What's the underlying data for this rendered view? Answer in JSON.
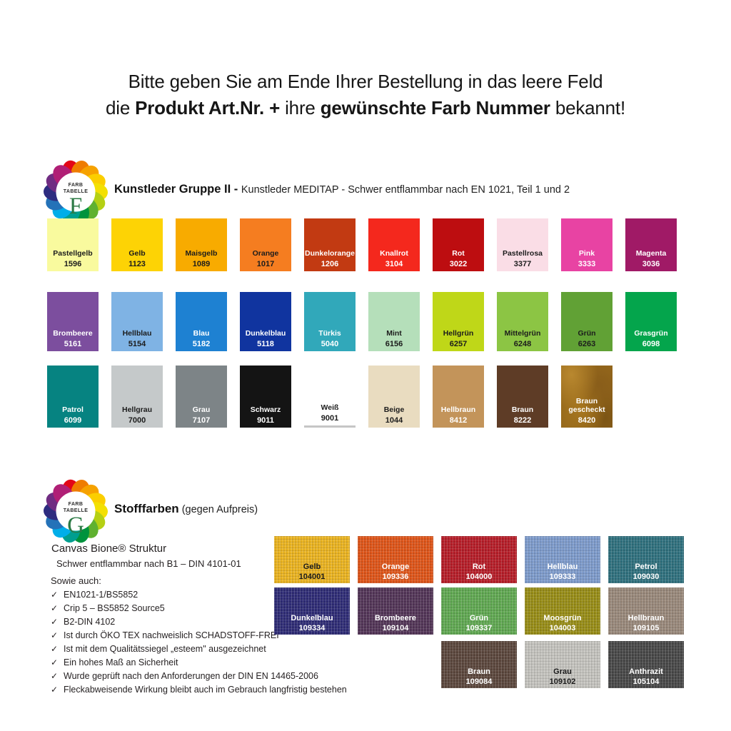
{
  "header": {
    "line1": "Bitte geben Sie am Ende Ihrer Bestellung in das leere Feld",
    "line2": {
      "pre": "die ",
      "bold1": "Produkt Art.Nr. +",
      "mid": " ihre ",
      "bold2": "gewünschte Farb Nummer",
      "post": " bekannt!"
    }
  },
  "logo": {
    "petal_colors": [
      "#e30617",
      "#ef7c00",
      "#f6a200",
      "#fbce00",
      "#f3e003",
      "#b5d014",
      "#5fb130",
      "#00933d",
      "#009e8f",
      "#00aee9",
      "#2472b8",
      "#2e2c80",
      "#702c82",
      "#b01f76"
    ],
    "circle": "#ffffff",
    "text_top": "FARB",
    "text_mid": "TABELLE",
    "letter_color": "#2c7a45"
  },
  "section1": {
    "logo_letter": "F",
    "title_bold": "Kunstleder Gruppe II - ",
    "title_rest": "Kunstleder MEDITAP - Schwer entflammbar nach EN 1021, Teil 1 und 2",
    "rows": [
      [
        {
          "name": "Pastellgelb",
          "code": "1596",
          "bg": "#f9fa9e",
          "fg": "#1c1c1c"
        },
        {
          "name": "Gelb",
          "code": "1123",
          "bg": "#fdd305",
          "fg": "#1c1c1c"
        },
        {
          "name": "Maisgelb",
          "code": "1089",
          "bg": "#f8ab00",
          "fg": "#1c1c1c"
        },
        {
          "name": "Orange",
          "code": "1017",
          "bg": "#f57d20",
          "fg": "#1c1c1c"
        },
        {
          "name": "Dunkelorange",
          "code": "1206",
          "bg": "#c23a12",
          "fg": "#ffffff"
        },
        {
          "name": "Knallrot",
          "code": "3104",
          "bg": "#f4281d",
          "fg": "#ffffff"
        },
        {
          "name": "Rot",
          "code": "3022",
          "bg": "#bd0d10",
          "fg": "#ffffff"
        },
        {
          "name": "Pastellrosa",
          "code": "3377",
          "bg": "#fadde6",
          "fg": "#1c1c1c"
        },
        {
          "name": "Pink",
          "code": "3333",
          "bg": "#e843a3",
          "fg": "#ffffff"
        },
        {
          "name": "Magenta",
          "code": "3036",
          "bg": "#a01a66",
          "fg": "#ffffff"
        }
      ],
      [
        {
          "name": "Brombeere",
          "code": "5161",
          "bg": "#7c4e9e",
          "fg": "#ffffff"
        },
        {
          "name": "Hellblau",
          "code": "5154",
          "bg": "#7fb3e4",
          "fg": "#1c1c1c"
        },
        {
          "name": "Blau",
          "code": "5182",
          "bg": "#1e81d2",
          "fg": "#ffffff"
        },
        {
          "name": "Dunkelblau",
          "code": "5118",
          "bg": "#10349f",
          "fg": "#ffffff"
        },
        {
          "name": "Türkis",
          "code": "5040",
          "bg": "#31a8ba",
          "fg": "#ffffff"
        },
        {
          "name": "Mint",
          "code": "6156",
          "bg": "#b5dfba",
          "fg": "#1c1c1c"
        },
        {
          "name": "Hellgrün",
          "code": "6257",
          "bg": "#bfd718",
          "fg": "#1c1c1c"
        },
        {
          "name": "Mittelgrün",
          "code": "6248",
          "bg": "#8cc544",
          "fg": "#1c1c1c"
        },
        {
          "name": "Grün",
          "code": "6263",
          "bg": "#61a135",
          "fg": "#1c1c1c"
        },
        {
          "name": "Grasgrün",
          "code": "6098",
          "bg": "#04a54c",
          "fg": "#ffffff"
        }
      ],
      [
        {
          "name": "Patrol",
          "code": "6099",
          "bg": "#068381",
          "fg": "#ffffff"
        },
        {
          "name": "Hellgrau",
          "code": "7000",
          "bg": "#c5c9ca",
          "fg": "#1c1c1c"
        },
        {
          "name": "Grau",
          "code": "7107",
          "bg": "#7d8487",
          "fg": "#ffffff"
        },
        {
          "name": "Schwarz",
          "code": "9011",
          "bg": "#141414",
          "fg": "#ffffff"
        },
        {
          "name": "Weiß",
          "code": "9001",
          "bg": "#ffffff",
          "fg": "#1c1c1c",
          "underline": true
        },
        {
          "name": "Beige",
          "code": "1044",
          "bg": "#e9dcc0",
          "fg": "#1c1c1c"
        },
        {
          "name": "Hellbraun",
          "code": "8412",
          "bg": "#c3945a",
          "fg": "#ffffff"
        },
        {
          "name": "Braun",
          "code": "8222",
          "bg": "#5e3c26",
          "fg": "#ffffff"
        },
        {
          "name": "Braun gescheckt",
          "code": "8420",
          "bg": "radial-gradient(ellipse at 20% 15%, #b9882f 0%, rgba(0,0,0,0) 45%), radial-gradient(ellipse at 75% 30%, #8a5e1a 0%, rgba(0,0,0,0) 50%), radial-gradient(ellipse at 40% 70%, #a9781f 0%, rgba(0,0,0,0) 55%), radial-gradient(ellipse at 85% 85%, #7c5414 0%, rgba(0,0,0,0) 60%), #96691c",
          "fg": "#ffffff"
        }
      ]
    ]
  },
  "section2": {
    "logo_letter": "G",
    "title_bold": "Stofffarben",
    "title_rest": " (gegen Aufpreis)",
    "canvas_title": "Canvas Bione® Struktur",
    "canvas_sub": "Schwer entflammbar nach B1 – DIN 4101-01",
    "also_label": "Sowie auch:",
    "check_mark": "✓",
    "checks": [
      "EN1021-1/BS5852",
      "Crip 5 – BS5852 Source5",
      "B2-DIN 4102",
      "Ist durch ÖKO TEX nachweislich SCHADSTOFF-FREI",
      "Ist mit dem Qualitätssiegel „esteem\" ausgezeichnet",
      "Ein hohes Maß an Sicherheit",
      "Wurde geprüft nach den Anforderungen der DIN EN 14465-2006",
      "Fleckabweisende Wirkung bleibt auch im Gebrauch langfristig bestehen"
    ],
    "rows": [
      [
        {
          "name": "Gelb",
          "code": "104001",
          "bg": "#ecb41f",
          "fg": "#1c1c1c"
        },
        {
          "name": "Orange",
          "code": "109336",
          "bg": "#e05417",
          "fg": "#ffffff"
        },
        {
          "name": "Rot",
          "code": "104000",
          "bg": "#b71c27",
          "fg": "#ffffff"
        },
        {
          "name": "Hellblau",
          "code": "109333",
          "bg": "#7e9ccd",
          "fg": "#ffffff"
        },
        {
          "name": "Petrol",
          "code": "109030",
          "bg": "#2e707e",
          "fg": "#ffffff"
        }
      ],
      [
        {
          "name": "Dunkelblau",
          "code": "109334",
          "bg": "#2e2b76",
          "fg": "#ffffff"
        },
        {
          "name": "Brombeere",
          "code": "109104",
          "bg": "#523457",
          "fg": "#ffffff"
        },
        {
          "name": "Grün",
          "code": "109337",
          "bg": "#60a951",
          "fg": "#ffffff"
        },
        {
          "name": "Moosgrün",
          "code": "104003",
          "bg": "#988d15",
          "fg": "#ffffff"
        },
        {
          "name": "Hellbraun",
          "code": "109105",
          "bg": "#9a897b",
          "fg": "#ffffff"
        }
      ],
      [
        null,
        null,
        {
          "name": "Braun",
          "code": "109084",
          "bg": "#5b463c",
          "fg": "#ffffff"
        },
        {
          "name": "Grau",
          "code": "109102",
          "bg": "#c6c5c0",
          "fg": "#1c1c1c"
        },
        {
          "name": "Anthrazit",
          "code": "105104",
          "bg": "#474747",
          "fg": "#ffffff"
        }
      ]
    ]
  }
}
